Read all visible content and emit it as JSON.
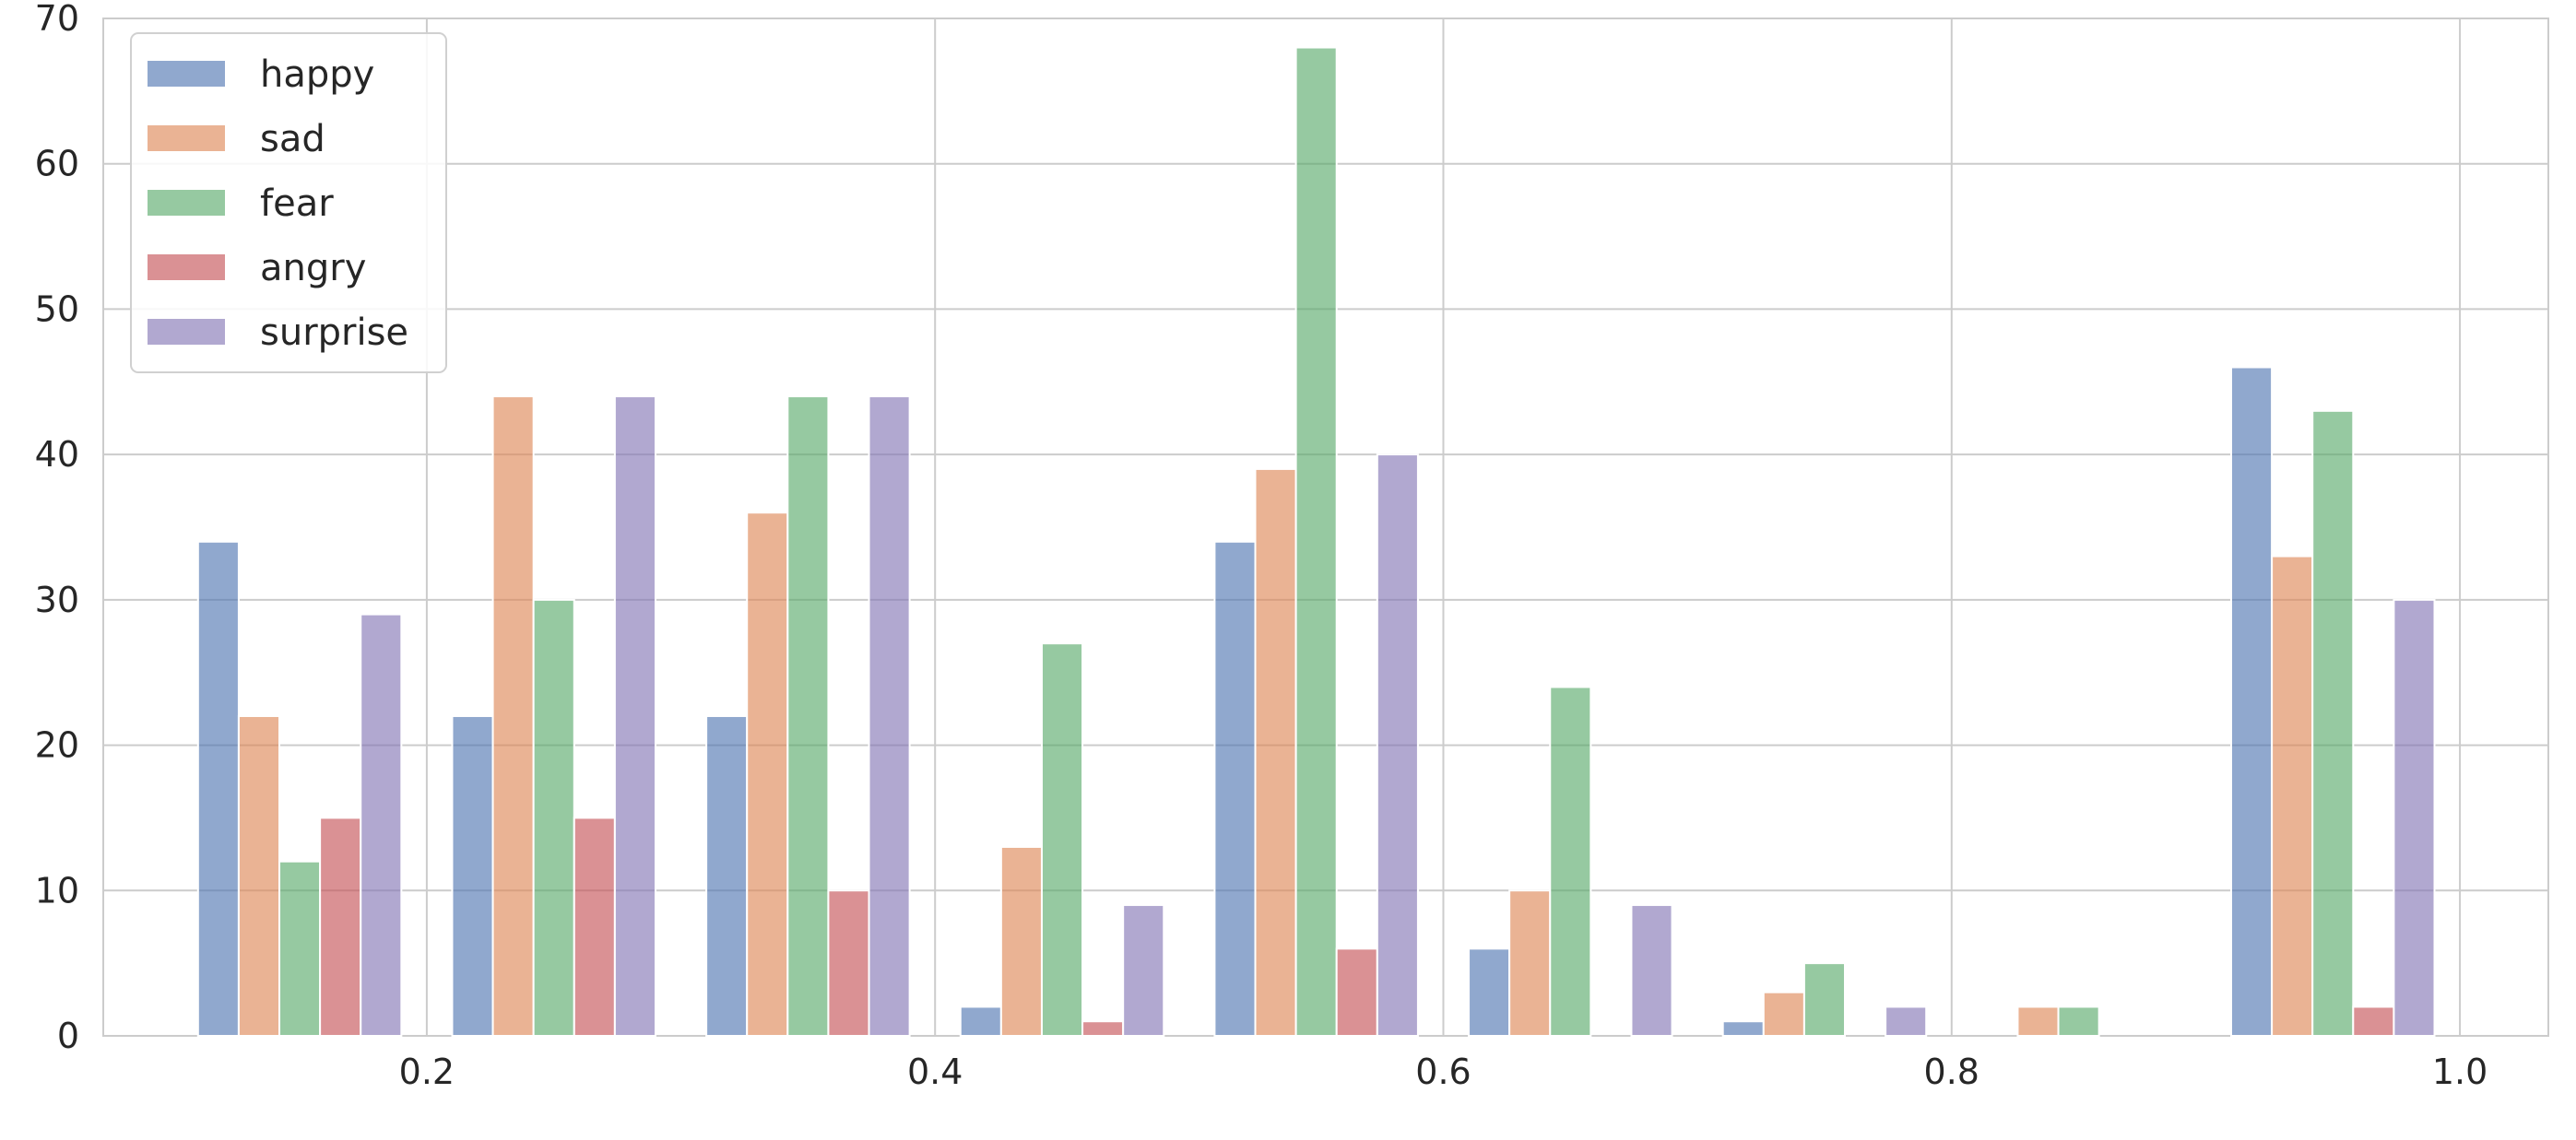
{
  "chart_data": {
    "type": "bar",
    "x": [
      0.15,
      0.25,
      0.35,
      0.45,
      0.55,
      0.65,
      0.75,
      0.85,
      0.95
    ],
    "series": [
      {
        "name": "happy",
        "color": "#4c72b0",
        "values": [
          34,
          22,
          22,
          2,
          34,
          6,
          1,
          0,
          46
        ]
      },
      {
        "name": "sad",
        "color": "#dd8452",
        "values": [
          22,
          44,
          36,
          13,
          39,
          10,
          3,
          2,
          33
        ]
      },
      {
        "name": "fear",
        "color": "#55a868",
        "values": [
          12,
          30,
          44,
          27,
          68,
          24,
          5,
          2,
          43
        ]
      },
      {
        "name": "angry",
        "color": "#c44e52",
        "values": [
          15,
          15,
          10,
          1,
          6,
          0,
          0,
          0,
          2
        ]
      },
      {
        "name": "surprise",
        "color": "#8172b3",
        "values": [
          29,
          44,
          44,
          9,
          40,
          9,
          2,
          0,
          30
        ]
      }
    ],
    "xlim": [
      0.0727,
      1.0348
    ],
    "ylim": [
      0,
      70
    ],
    "xticks": [
      "0.2",
      "0.4",
      "0.6",
      "0.8",
      "1.0"
    ],
    "xtick_values": [
      0.2,
      0.4,
      0.6,
      0.8,
      1.0
    ],
    "yticks": [
      "0",
      "10",
      "20",
      "30",
      "40",
      "50",
      "60",
      "70"
    ],
    "ytick_values": [
      0,
      10,
      20,
      30,
      40,
      50,
      60,
      70
    ],
    "grid": true,
    "legend_position": "top-left",
    "bar_group_width": 0.08,
    "bar_alpha": 0.62,
    "title": "",
    "xlabel": "",
    "ylabel": ""
  }
}
